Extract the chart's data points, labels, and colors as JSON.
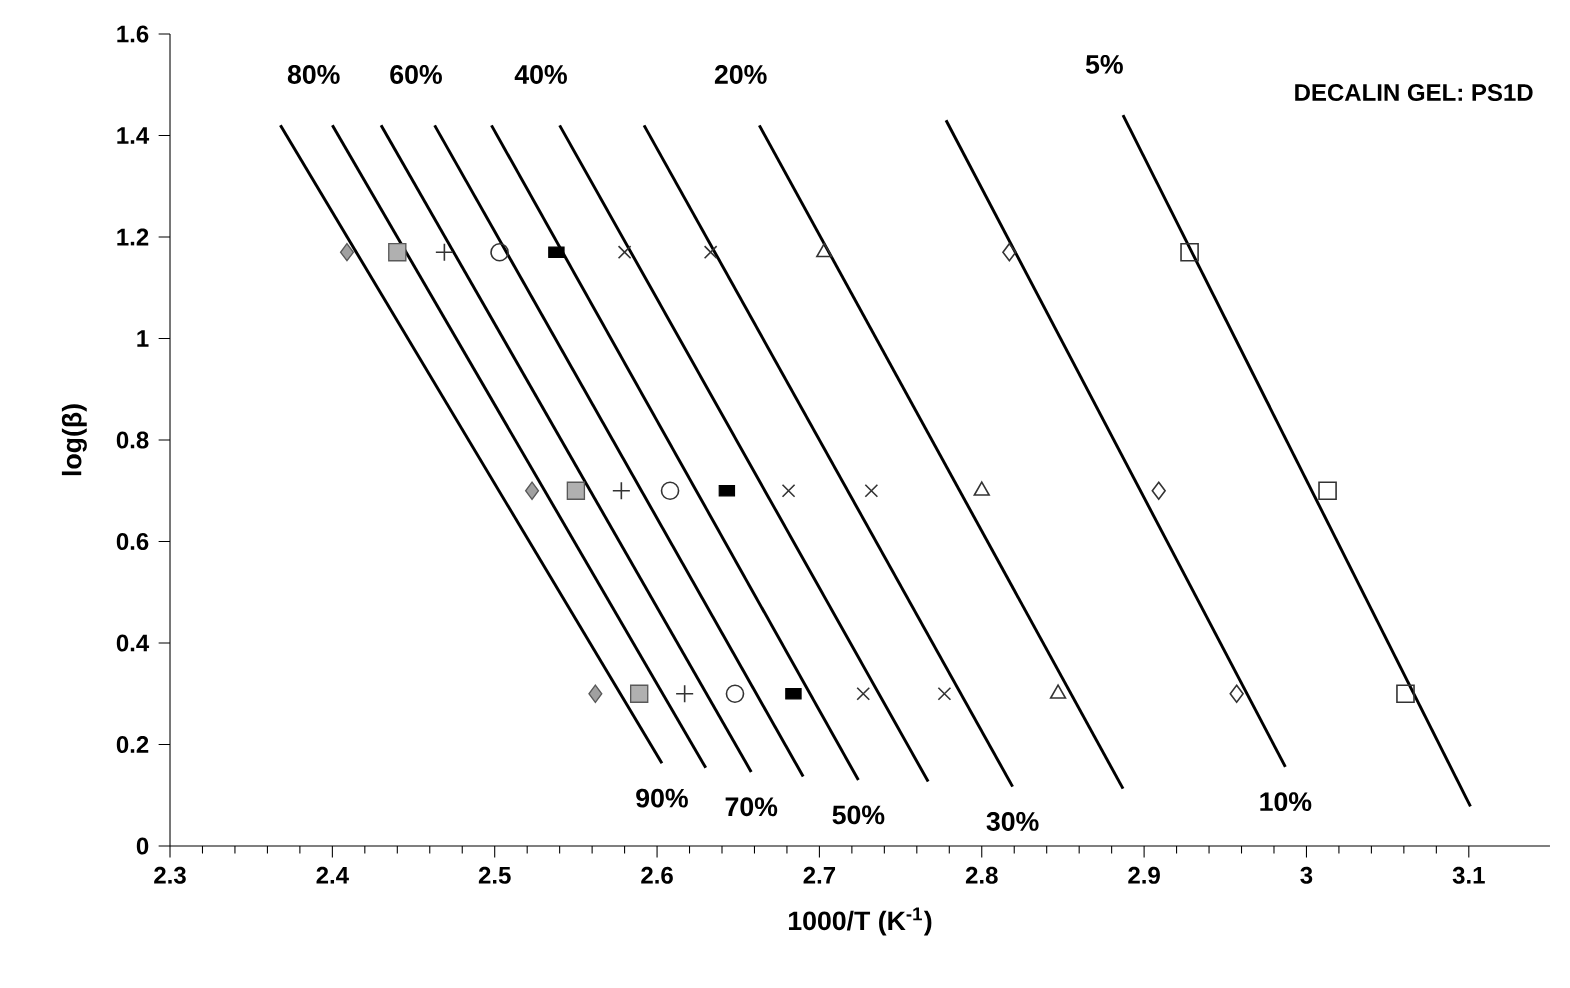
{
  "chart_data": {
    "type": "line",
    "xlabel": "1000/T (K$^{-1}$)",
    "ylabel": "log(β)",
    "xlim": [
      2.3,
      3.15
    ],
    "ylim": [
      0,
      1.6
    ],
    "xticks": [
      2.3,
      2.4,
      2.5,
      2.6,
      2.7,
      2.8,
      2.9,
      3,
      3.1
    ],
    "yticks": [
      0,
      0.2,
      0.4,
      0.6,
      0.8,
      1,
      1.2,
      1.4,
      1.6
    ],
    "annotations": [
      "DECALIN GEL: PS1D"
    ],
    "series": [
      {
        "name": "90%",
        "color": "#000000",
        "x": [
          2.368,
          2.603
        ],
        "values": [
          1.42,
          0.163
        ]
      },
      {
        "name": "80%",
        "color": "#000000",
        "x": [
          2.4,
          2.63
        ],
        "values": [
          1.42,
          0.154
        ]
      },
      {
        "name": "70%",
        "color": "#000000",
        "x": [
          2.43,
          2.658
        ],
        "values": [
          1.42,
          0.146
        ]
      },
      {
        "name": "60%",
        "color": "#000000",
        "x": [
          2.463,
          2.69
        ],
        "values": [
          1.42,
          0.137
        ]
      },
      {
        "name": "50%",
        "color": "#000000",
        "x": [
          2.498,
          2.724
        ],
        "values": [
          1.42,
          0.13
        ]
      },
      {
        "name": "40%",
        "color": "#000000",
        "x": [
          2.54,
          2.767
        ],
        "values": [
          1.42,
          0.127
        ]
      },
      {
        "name": "30%",
        "color": "#000000",
        "x": [
          2.592,
          2.819
        ],
        "values": [
          1.42,
          0.117
        ]
      },
      {
        "name": "20%",
        "color": "#000000",
        "x": [
          2.663,
          2.887
        ],
        "values": [
          1.42,
          0.113
        ]
      },
      {
        "name": "10%",
        "color": "#000000",
        "x": [
          2.778,
          2.987
        ],
        "values": [
          1.43,
          0.156
        ]
      },
      {
        "name": "5%",
        "color": "#000000",
        "x": [
          2.887,
          3.101
        ],
        "values": [
          1.44,
          0.078
        ]
      },
      {
        "type": "scatter",
        "marker": "diamond",
        "color": "#a0a0a0",
        "x": [
          2.409,
          2.523,
          2.562
        ],
        "values": [
          1.17,
          0.7,
          0.3
        ]
      },
      {
        "type": "scatter",
        "marker": "square",
        "color": "#b0b0b0",
        "x": [
          2.44,
          2.55,
          2.589
        ],
        "values": [
          1.17,
          0.7,
          0.3
        ]
      },
      {
        "type": "scatter",
        "marker": "plus",
        "color": "#333333",
        "x": [
          2.469,
          2.578,
          2.617
        ],
        "values": [
          1.17,
          0.7,
          0.3
        ]
      },
      {
        "type": "scatter",
        "marker": "circle",
        "color": "#333333",
        "x": [
          2.503,
          2.608,
          2.648
        ],
        "values": [
          1.17,
          0.7,
          0.3
        ]
      },
      {
        "type": "scatter",
        "color": "#000000",
        "x": [
          2.538,
          2.643,
          2.684
        ],
        "values": [
          1.17,
          0.7,
          0.3
        ]
      },
      {
        "type": "scatter",
        "marker": "cross",
        "color": "#333333",
        "x": [
          2.58,
          2.681,
          2.727
        ],
        "values": [
          1.17,
          0.7,
          0.3
        ]
      },
      {
        "type": "scatter",
        "marker": "cross",
        "color": "#333333",
        "x": [
          2.633,
          2.732,
          2.777
        ],
        "values": [
          1.17,
          0.7,
          0.3
        ]
      },
      {
        "type": "scatter",
        "marker": "triangle",
        "color": "#333333",
        "x": [
          2.703,
          2.8,
          2.847
        ],
        "values": [
          1.17,
          0.7,
          0.3
        ]
      },
      {
        "type": "scatter",
        "marker": "diamond",
        "color": "#333333",
        "x": [
          2.817,
          2.909,
          2.957
        ],
        "values": [
          1.17,
          0.7,
          0.3
        ]
      },
      {
        "type": "scatter",
        "marker": "square",
        "color": "#333333",
        "x": [
          2.928,
          3.013,
          3.061
        ],
        "values": [
          1.17,
          0.7,
          0.3
        ]
      }
    ]
  }
}
